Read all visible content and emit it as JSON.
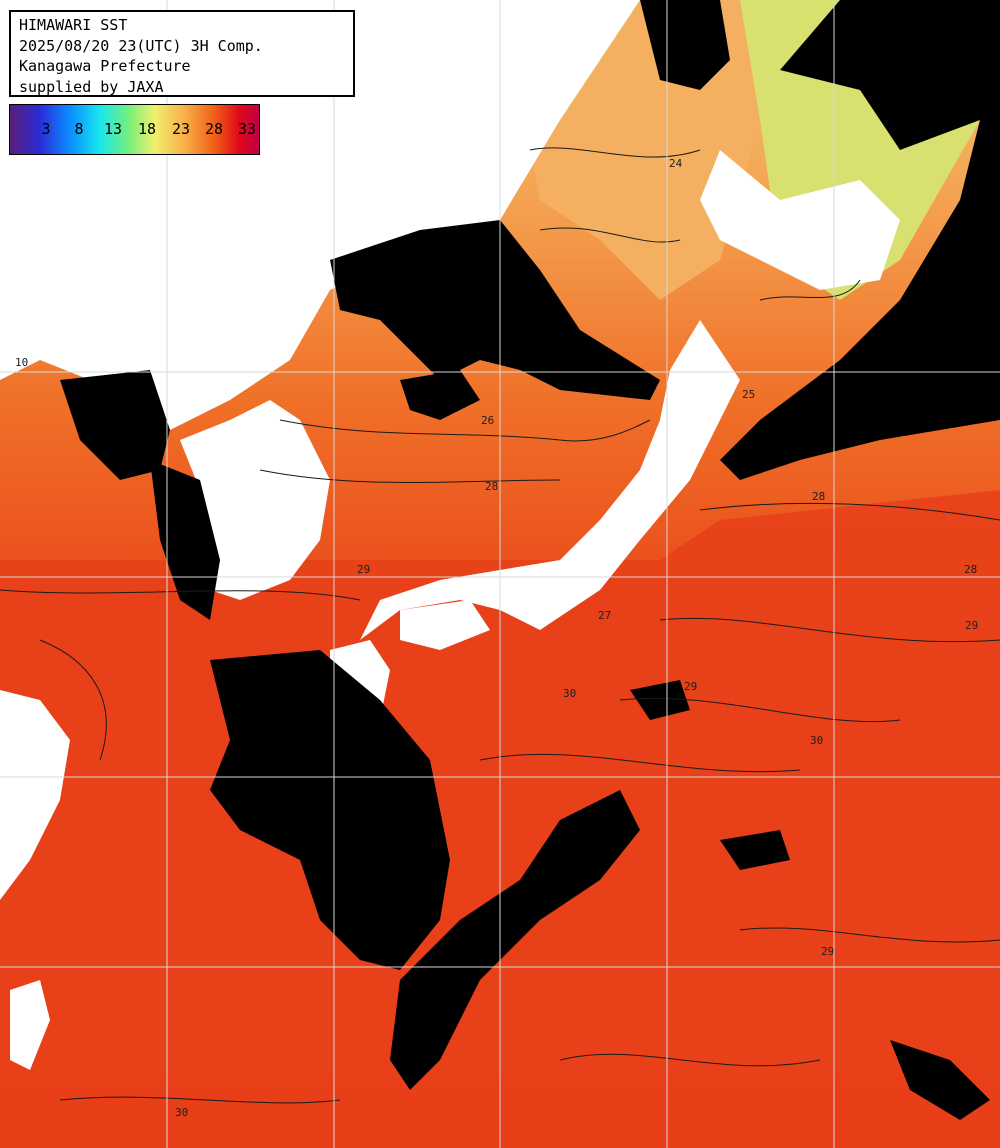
{
  "title": {
    "lines": [
      "HIMAWARI SST",
      "2025/08/20 23(UTC) 3H Comp.",
      "Kanagawa Prefecture",
      "supplied by JAXA"
    ]
  },
  "colorbar": {
    "ticks": [
      "3",
      "8",
      "13",
      "18",
      "23",
      "28",
      "33"
    ]
  },
  "contour_labels": [
    "24",
    "25",
    "26",
    "27",
    "28",
    "29",
    "30"
  ],
  "edge_label": "10",
  "colors": {
    "ocean_warm": "#e8401a",
    "ocean_hot": "#e02010",
    "ocean_mid": "#f08030",
    "ocean_cool": "#f4b060",
    "ocean_cold": "#e8e070",
    "cloud": "#000000",
    "land": "#ffffff",
    "grid": "#d8d8d8"
  }
}
